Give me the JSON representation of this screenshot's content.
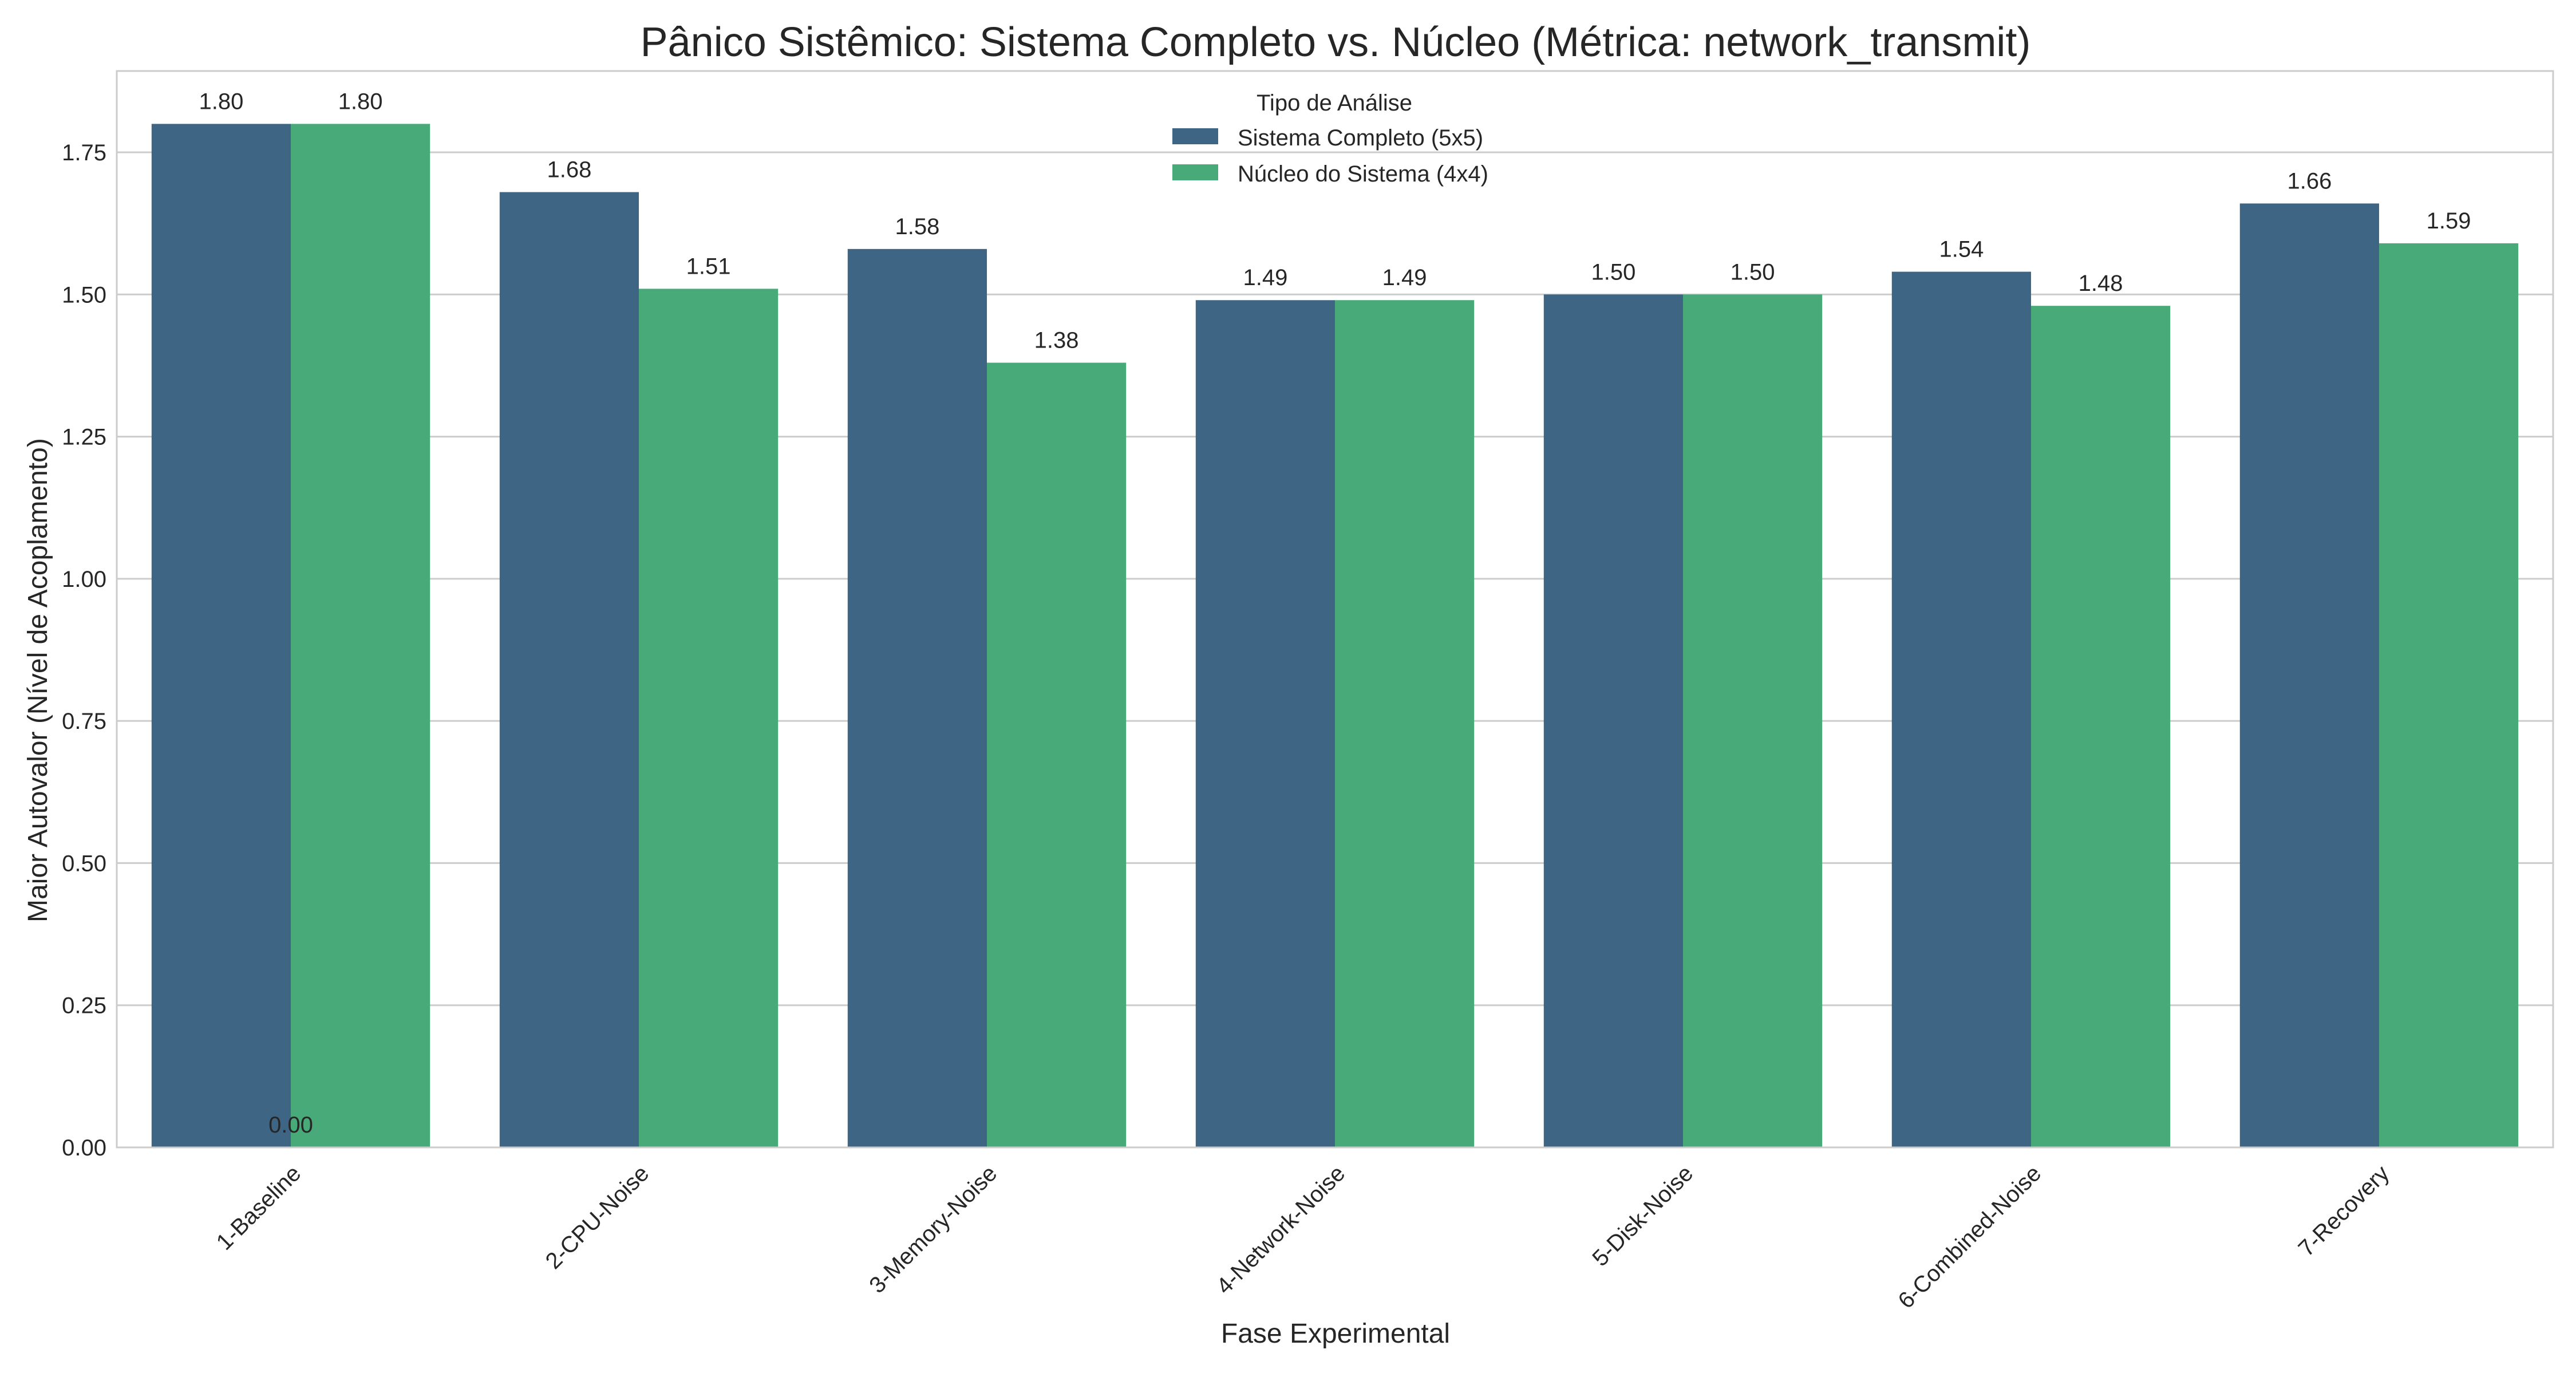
{
  "chart_data": {
    "type": "bar",
    "title": "Pânico Sistêmico: Sistema Completo vs. Núcleo (Métrica: network_transmit)",
    "xlabel": "Fase Experimental",
    "ylabel": "Maior Autovalor (Nível de Acoplamento)",
    "categories": [
      "1-Baseline",
      "2-CPU-Noise",
      "3-Memory-Noise",
      "4-Network-Noise",
      "5-Disk-Noise",
      "6-Combined-Noise",
      "7-Recovery"
    ],
    "series": [
      {
        "name": "Sistema Completo (5x5)",
        "color": "#3e6584",
        "values": [
          1.8,
          1.68,
          1.58,
          1.49,
          1.5,
          1.54,
          1.66
        ],
        "labels": [
          "1.80",
          "1.68",
          "1.58",
          "1.49",
          "1.50",
          "1.54",
          "1.66"
        ]
      },
      {
        "name": "Núcleo do Sistema (4x4)",
        "color": "#48a979",
        "values": [
          1.8,
          1.51,
          1.38,
          1.49,
          1.5,
          1.48,
          1.59
        ],
        "labels": [
          "1.80",
          "1.51",
          "1.38",
          "1.49",
          "1.50",
          "1.48",
          "1.59"
        ]
      }
    ],
    "extra_annotation": "0.00",
    "ylim": [
      0,
      1.893
    ],
    "yticks": [
      "0.00",
      "0.25",
      "0.50",
      "0.75",
      "1.00",
      "1.25",
      "1.50",
      "1.75"
    ],
    "legend": {
      "title": "Tipo de Análise",
      "placement": "upper center"
    },
    "grid": true
  }
}
